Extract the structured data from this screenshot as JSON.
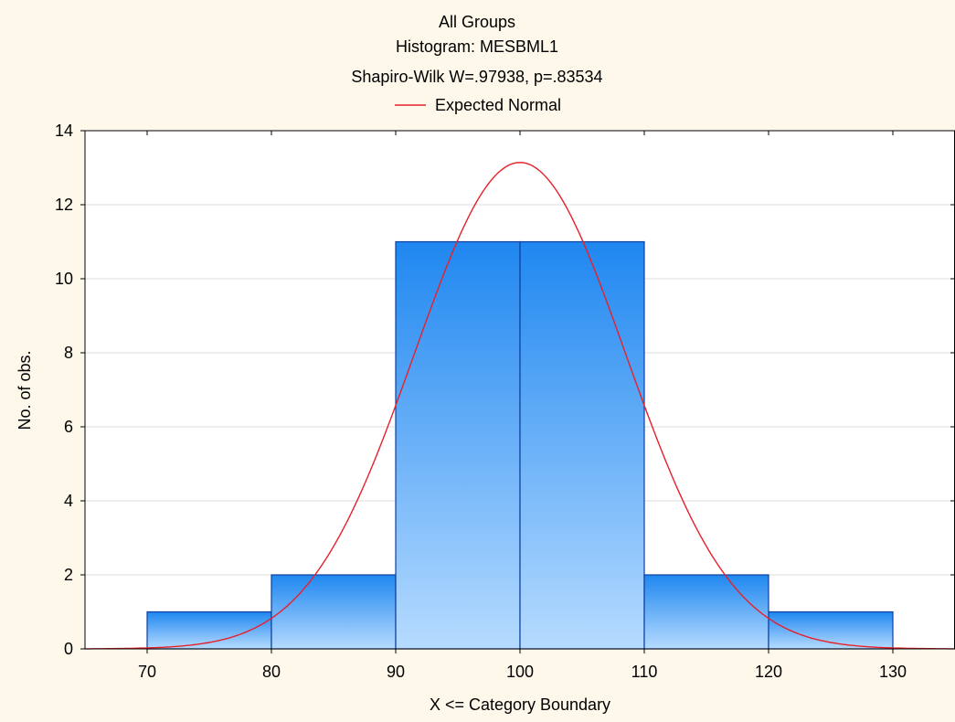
{
  "chart_data": {
    "type": "bar",
    "title_lines": [
      "All Groups",
      "Histogram: MESBML1",
      "Shapiro-Wilk W=.97938, p=.83534"
    ],
    "legend": {
      "label": "Expected Normal",
      "color": "#e8202a",
      "placement": "top-center"
    },
    "xlabel": "X <= Category Boundary",
    "ylabel": "No. of obs.",
    "xlim": [
      65,
      135
    ],
    "ylim": [
      0,
      14
    ],
    "x_ticks": [
      70,
      80,
      90,
      100,
      110,
      120,
      130
    ],
    "y_ticks": [
      0,
      2,
      4,
      6,
      8,
      10,
      12,
      14
    ],
    "grid": "horizontal",
    "bins": [
      {
        "from": 70,
        "to": 80,
        "count": 1
      },
      {
        "from": 80,
        "to": 90,
        "count": 2
      },
      {
        "from": 90,
        "to": 100,
        "count": 11
      },
      {
        "from": 100,
        "to": 110,
        "count": 11
      },
      {
        "from": 110,
        "to": 120,
        "count": 2
      },
      {
        "from": 120,
        "to": 130,
        "count": 1
      }
    ],
    "expected_normal": {
      "mean": 100,
      "sd": 8.5,
      "n": 28,
      "bin_width": 10
    },
    "colors": {
      "bar_top": "#1f87f0",
      "bar_bottom": "#b6dbff",
      "bar_edge": "#0d3f9e",
      "grid": "#dcdcdc",
      "plot_bg": "#ffffff",
      "page_bg": "#fdf8ea"
    }
  }
}
